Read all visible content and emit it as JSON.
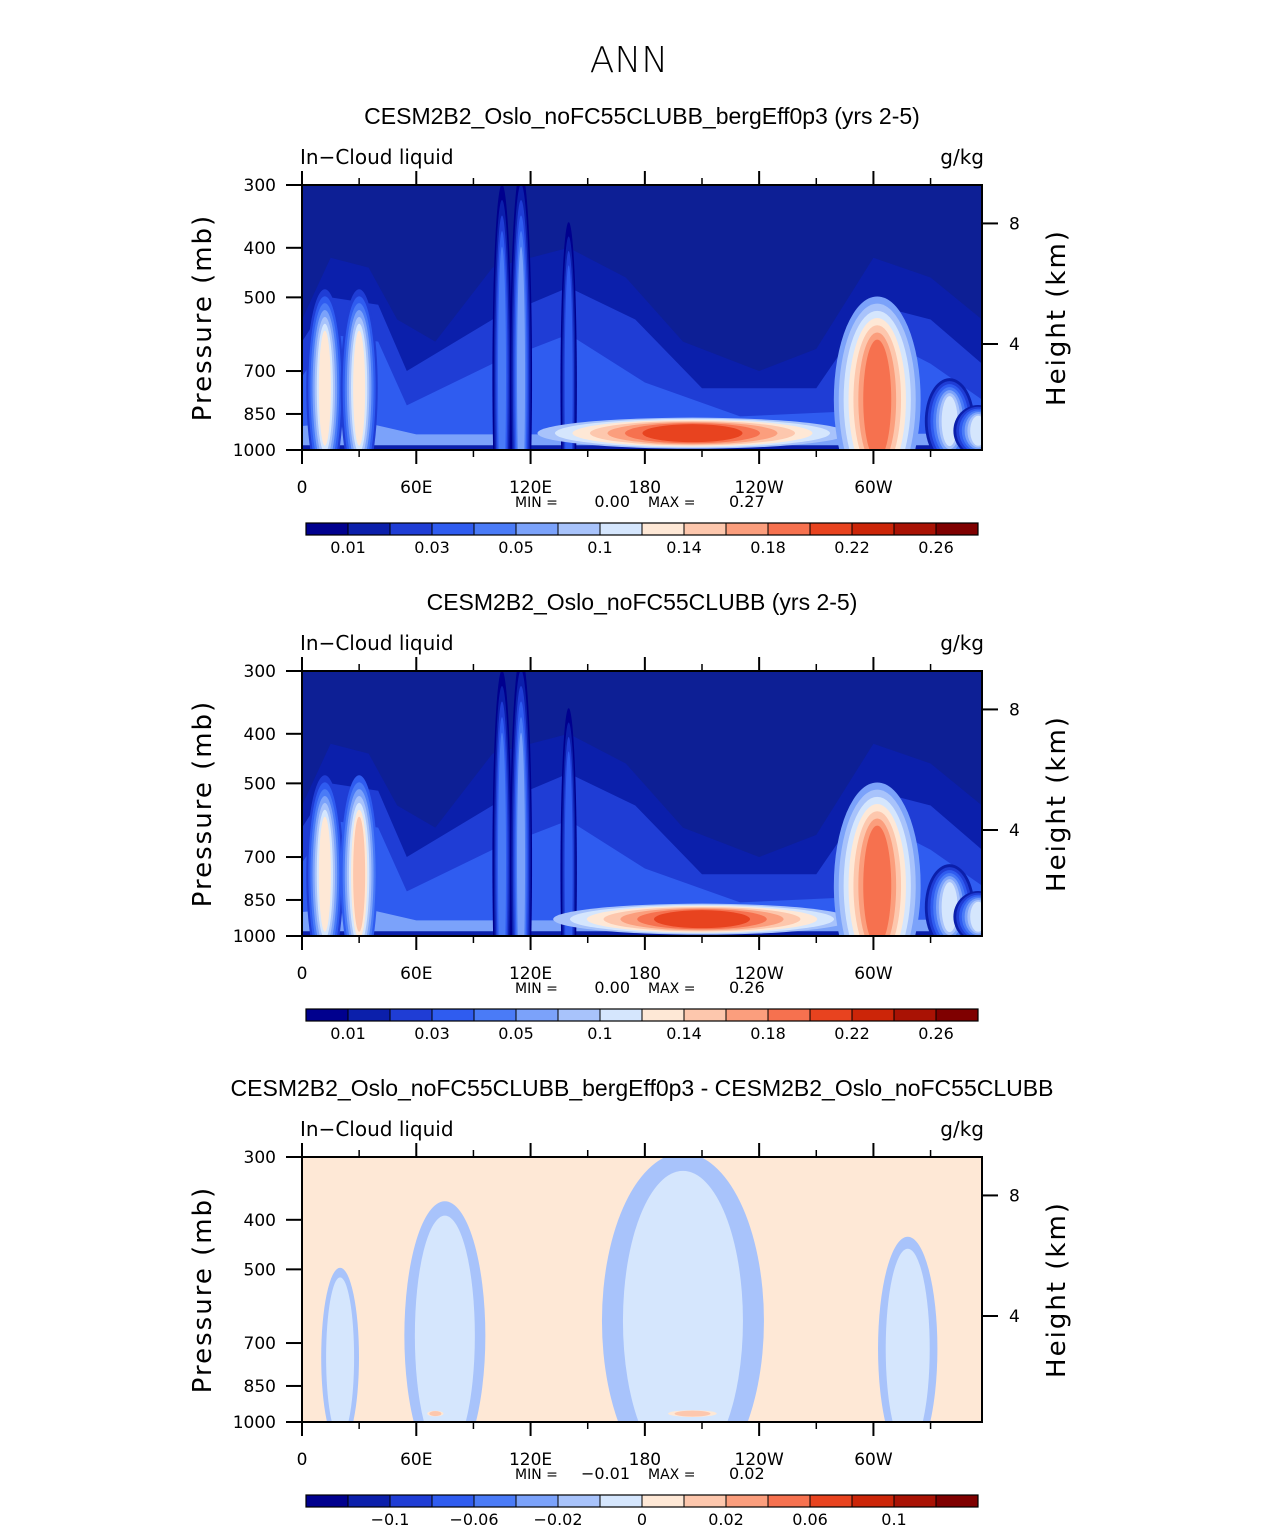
{
  "figure_title": "ANN",
  "chart_data": [
    {
      "type": "heatmap",
      "title": "CESM2B2_Oslo_noFC55CLUBB_bergEff0p3 (yrs 2-5)",
      "variable_label": "In−Cloud liquid",
      "units_label": "g/kg",
      "ylabel": "Pressure (mb)",
      "ylabel_right": "Height (km)",
      "x_ticks": [
        "0",
        "60E",
        "120E",
        "180",
        "120W",
        "60W"
      ],
      "y_ticks": [
        "300",
        "400",
        "500",
        "700",
        "850",
        "1000"
      ],
      "y_ticks_right": [
        "8",
        "4"
      ],
      "min_label": "MIN =",
      "min_value": "0.00",
      "max_label": "MAX =",
      "max_value": "0.27",
      "colorbar_ticks": [
        "0.01",
        "0.03",
        "0.05",
        "0.1",
        "0.14",
        "0.18",
        "0.22",
        "0.26"
      ],
      "background": "#0d1f95",
      "features": [
        {
          "lon": 12,
          "p": 760,
          "level": 8,
          "w": 6,
          "h": 115
        },
        {
          "lon": 30,
          "p": 760,
          "level": 8,
          "w": 6,
          "h": 115
        },
        {
          "lon": 105,
          "p": 720,
          "level": 4,
          "w": 4,
          "h": 260
        },
        {
          "lon": 115,
          "p": 720,
          "level": 5,
          "w": 4,
          "h": 260
        },
        {
          "lon": 140,
          "p": 750,
          "level": 3,
          "w": 4,
          "h": 240
        },
        {
          "lon": 205,
          "p": 930,
          "level": 12,
          "w": 50,
          "h": 18
        },
        {
          "lon": 302,
          "p": 800,
          "level": 11,
          "w": 14,
          "h": 120
        },
        {
          "lon": 340,
          "p": 880,
          "level": 7,
          "w": 8,
          "h": 50
        },
        {
          "lon": 355,
          "p": 920,
          "level": 7,
          "w": 8,
          "h": 30
        }
      ]
    },
    {
      "type": "heatmap",
      "title": "CESM2B2_Oslo_noFC55CLUBB (yrs 2-5)",
      "variable_label": "In−Cloud liquid",
      "units_label": "g/kg",
      "ylabel": "Pressure (mb)",
      "ylabel_right": "Height (km)",
      "x_ticks": [
        "0",
        "60E",
        "120E",
        "180",
        "120W",
        "60W"
      ],
      "y_ticks": [
        "300",
        "400",
        "500",
        "700",
        "850",
        "1000"
      ],
      "y_ticks_right": [
        "8",
        "4"
      ],
      "min_label": "MIN =",
      "min_value": "0.00",
      "max_label": "MAX =",
      "max_value": "0.26",
      "colorbar_ticks": [
        "0.01",
        "0.03",
        "0.05",
        "0.1",
        "0.14",
        "0.18",
        "0.22",
        "0.26"
      ],
      "background": "#0d1f95",
      "features": [
        {
          "lon": 12,
          "p": 760,
          "level": 8,
          "w": 6,
          "h": 115
        },
        {
          "lon": 30,
          "p": 760,
          "level": 9,
          "w": 6,
          "h": 115
        },
        {
          "lon": 105,
          "p": 720,
          "level": 4,
          "w": 4,
          "h": 260
        },
        {
          "lon": 115,
          "p": 720,
          "level": 5,
          "w": 4,
          "h": 260
        },
        {
          "lon": 140,
          "p": 750,
          "level": 3,
          "w": 4,
          "h": 240
        },
        {
          "lon": 210,
          "p": 930,
          "level": 12,
          "w": 48,
          "h": 18
        },
        {
          "lon": 302,
          "p": 800,
          "level": 11,
          "w": 14,
          "h": 120
        },
        {
          "lon": 340,
          "p": 880,
          "level": 7,
          "w": 8,
          "h": 50
        },
        {
          "lon": 355,
          "p": 920,
          "level": 7,
          "w": 8,
          "h": 30
        }
      ]
    },
    {
      "type": "heatmap",
      "title": "CESM2B2_Oslo_noFC55CLUBB_bergEff0p3 - CESM2B2_Oslo_noFC55CLUBB",
      "variable_label": "In−Cloud liquid",
      "units_label": "g/kg",
      "ylabel": "Pressure (mb)",
      "ylabel_right": "Height (km)",
      "x_ticks": [
        "0",
        "60E",
        "120E",
        "180",
        "120W",
        "60W"
      ],
      "y_ticks": [
        "300",
        "400",
        "500",
        "700",
        "850",
        "1000"
      ],
      "y_ticks_right": [
        "8",
        "4"
      ],
      "min_label": "MIN =",
      "min_value": "−0.01",
      "max_label": "MAX =",
      "max_value": "0.02",
      "colorbar_ticks": [
        "−0.1",
        "−0.06",
        "−0.02",
        "0",
        "0.02",
        "0.06",
        "0.1"
      ],
      "background": "#fee8d6",
      "features": [
        {
          "lon": 20,
          "p": 750,
          "level": 7,
          "w": 14,
          "h": 160
        },
        {
          "lon": 75,
          "p": 680,
          "level": 7,
          "w": 30,
          "h": 240
        },
        {
          "lon": 200,
          "p": 640,
          "level": 7,
          "w": 60,
          "h": 300
        },
        {
          "lon": 318,
          "p": 720,
          "level": 7,
          "w": 22,
          "h": 200
        },
        {
          "lon": 205,
          "p": 965,
          "level": 9,
          "w": 18,
          "h": 6
        },
        {
          "lon": 70,
          "p": 965,
          "level": 9,
          "w": 6,
          "h": 5
        }
      ]
    }
  ],
  "colormap": [
    "#00008e",
    "#0b1fab",
    "#1f3dd5",
    "#2f5cf0",
    "#4a7bf7",
    "#7ba2fa",
    "#a8c3fb",
    "#d5e6fd",
    "#fee8d6",
    "#fdc7ad",
    "#fb9e7d",
    "#f6714f",
    "#e8431f",
    "#cc2508",
    "#a91204",
    "#7f0000"
  ]
}
